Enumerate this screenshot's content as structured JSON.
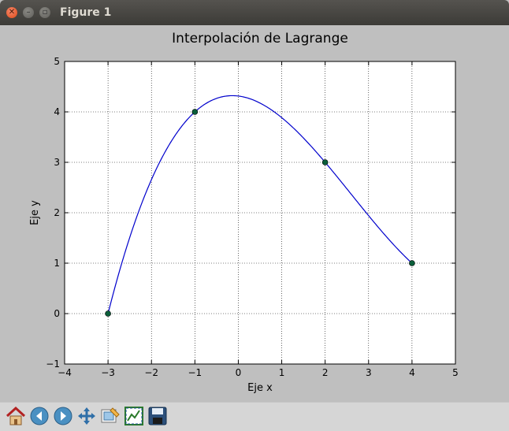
{
  "window": {
    "title": "Figure 1",
    "controls": [
      "close-icon",
      "minimize-icon",
      "maximize-icon"
    ]
  },
  "toolbar": {
    "items": [
      "home-icon",
      "back-arrow-icon",
      "forward-arrow-icon",
      "pan-icon",
      "zoom-icon",
      "configure-subplots-icon",
      "save-icon"
    ]
  },
  "chart_data": {
    "type": "line",
    "title": "Interpolación de Lagrange",
    "xlabel": "Eje x",
    "ylabel": "Eje y",
    "xlim": [
      -4,
      5
    ],
    "ylim": [
      -1,
      5
    ],
    "xticks": [
      "−4",
      "−3",
      "−2",
      "−1",
      "0",
      "1",
      "2",
      "3",
      "4",
      "5"
    ],
    "yticks": [
      "−1",
      "0",
      "1",
      "2",
      "3",
      "4",
      "5"
    ],
    "grid": true,
    "points": {
      "x": [
        -3,
        -1,
        2,
        4
      ],
      "y": [
        0,
        4,
        3,
        1
      ],
      "color": "#0b5e3a"
    },
    "curve": {
      "color": "#0000cc",
      "x_range": [
        -3,
        4
      ]
    }
  }
}
